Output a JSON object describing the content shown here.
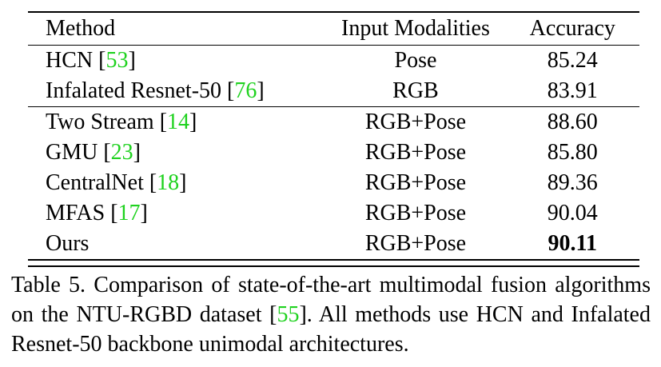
{
  "table": {
    "headers": [
      "Method",
      "Input Modalities",
      "Accuracy"
    ],
    "group1": [
      {
        "name": "HCN",
        "cite": "53",
        "modality": "Pose",
        "accuracy": "85.24"
      },
      {
        "name": "Infalated Resnet-50",
        "cite": "76",
        "modality": "RGB",
        "accuracy": "83.91"
      }
    ],
    "group2": [
      {
        "name": "Two Stream",
        "cite": "14",
        "modality": "RGB+Pose",
        "accuracy": "88.60"
      },
      {
        "name": "GMU",
        "cite": "23",
        "modality": "RGB+Pose",
        "accuracy": "85.80"
      },
      {
        "name": "CentralNet",
        "cite": "18",
        "modality": "RGB+Pose",
        "accuracy": "89.36"
      },
      {
        "name": "MFAS",
        "cite": "17",
        "modality": "RGB+Pose",
        "accuracy": "90.04"
      },
      {
        "name": "Ours",
        "cite": "",
        "modality": "RGB+Pose",
        "accuracy": "90.11",
        "bold": true
      }
    ]
  },
  "caption": {
    "prefix": "Table 5. Comparison of state-of-the-art multimodal fusion algorithms on the NTU-RGBD dataset [",
    "cite": "55",
    "suffix": "].  All methods use HCN and Infalated Resnet-50 backbone unimodal architectures."
  },
  "colors": {
    "citation": "#1fd21f",
    "text": "#000000"
  }
}
